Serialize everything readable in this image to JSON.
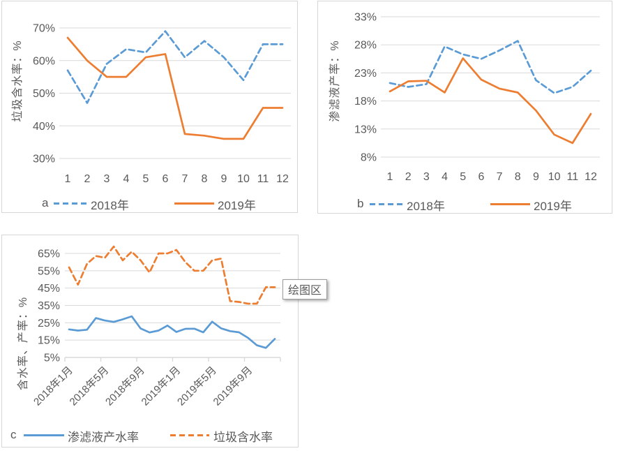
{
  "colors": {
    "series_blue": "#5B9BD5",
    "series_orange": "#ED7D31",
    "gridline": "#D9D9D9",
    "axis_text": "#595959",
    "panel_border": "#D6D6D6",
    "tooltip_border": "#9C9C9C",
    "background": "#FFFFFF"
  },
  "tooltip": {
    "text": "绘图区"
  },
  "chart_data": [
    {
      "id": "a",
      "type": "line",
      "panel_label": "a",
      "title": "",
      "xlabel": "",
      "ylabel": "垃圾含水率：%",
      "categories": [
        "1",
        "2",
        "3",
        "4",
        "5",
        "6",
        "7",
        "8",
        "9",
        "10",
        "11",
        "12"
      ],
      "ylim": [
        30,
        70
      ],
      "yticks": [
        30,
        40,
        50,
        60,
        70
      ],
      "ytick_labels": [
        "30%",
        "40%",
        "50%",
        "60%",
        "70%"
      ],
      "grid": true,
      "legend_position": "bottom",
      "series": [
        {
          "name": "2018年",
          "color_key": "series_blue",
          "dashed": true,
          "values": [
            57,
            47,
            59,
            63.5,
            62.5,
            69,
            61,
            66,
            61,
            54,
            65,
            65
          ]
        },
        {
          "name": "2019年",
          "color_key": "series_orange",
          "dashed": false,
          "values": [
            67,
            60,
            55,
            55,
            61,
            62,
            37.5,
            37,
            36,
            36,
            45.5,
            45.5
          ]
        }
      ]
    },
    {
      "id": "b",
      "type": "line",
      "panel_label": "b",
      "title": "",
      "xlabel": "",
      "ylabel": "渗滤液产率：%",
      "categories": [
        "1",
        "2",
        "3",
        "4",
        "5",
        "6",
        "7",
        "8",
        "9",
        "10",
        "11",
        "12"
      ],
      "ylim": [
        8,
        33
      ],
      "yticks": [
        8,
        13,
        18,
        23,
        28,
        33
      ],
      "ytick_labels": [
        "8%",
        "13%",
        "18%",
        "23%",
        "28%",
        "33%"
      ],
      "grid": true,
      "legend_position": "bottom",
      "series": [
        {
          "name": "2018年",
          "color_key": "series_blue",
          "dashed": true,
          "values": [
            21.2,
            20.5,
            21,
            27.7,
            26.3,
            25.5,
            27,
            28.7,
            21.7,
            19.4,
            20.5,
            23.4
          ]
        },
        {
          "name": "2019年",
          "color_key": "series_orange",
          "dashed": false,
          "values": [
            19.7,
            21.5,
            21.6,
            19.5,
            25.6,
            21.8,
            20.2,
            19.5,
            16.3,
            12,
            10.5,
            15.7
          ]
        }
      ]
    },
    {
      "id": "c",
      "type": "line",
      "panel_label": "c",
      "title": "",
      "xlabel": "",
      "ylabel": "含水率、产率：%",
      "n_points": 24,
      "x_tick_labels": [
        "2018年1月",
        "2018年5月",
        "2018年9月",
        "2019年1月",
        "2019年5月",
        "2019年9月"
      ],
      "ylim": [
        5,
        65
      ],
      "yticks": [
        5,
        15,
        25,
        35,
        45,
        55,
        65
      ],
      "ytick_labels": [
        "5%",
        "15%",
        "25%",
        "35%",
        "45%",
        "55%",
        "65%"
      ],
      "grid": true,
      "legend_position": "bottom",
      "series": [
        {
          "name": "渗滤液产水率",
          "color_key": "series_blue",
          "dashed": false,
          "values": [
            21.2,
            20.5,
            21,
            27.7,
            26.3,
            25.5,
            27,
            28.7,
            21.7,
            19.4,
            20.5,
            23.4,
            19.7,
            21.5,
            21.6,
            19.5,
            25.6,
            21.8,
            20.2,
            19.5,
            16.3,
            12,
            10.5,
            15.7
          ]
        },
        {
          "name": "垃圾含水率",
          "color_key": "series_orange",
          "dashed": true,
          "values": [
            57,
            47,
            59,
            63.5,
            62.5,
            69,
            61,
            66,
            61,
            54,
            65,
            65,
            67,
            60,
            55,
            55,
            61,
            62,
            37.5,
            37,
            36,
            36,
            45.5,
            45.5
          ]
        }
      ]
    }
  ]
}
